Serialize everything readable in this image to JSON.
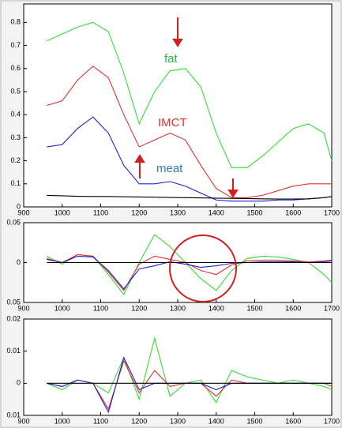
{
  "chart_data": [
    {
      "type": "line",
      "x": [
        960,
        1000,
        1040,
        1080,
        1120,
        1160,
        1200,
        1240,
        1280,
        1320,
        1360,
        1400,
        1440,
        1480,
        1520,
        1560,
        1600,
        1640,
        1680,
        1700
      ],
      "series": [
        {
          "name": "fat",
          "color": "#33dd33",
          "values": [
            0.72,
            0.75,
            0.78,
            0.8,
            0.76,
            0.58,
            0.36,
            0.5,
            0.59,
            0.6,
            0.52,
            0.32,
            0.17,
            0.17,
            0.22,
            0.28,
            0.34,
            0.36,
            0.32,
            0.2
          ]
        },
        {
          "name": "IMCT",
          "color": "#e03030",
          "values": [
            0.44,
            0.46,
            0.55,
            0.61,
            0.56,
            0.4,
            0.26,
            0.29,
            0.32,
            0.29,
            0.18,
            0.08,
            0.04,
            0.04,
            0.05,
            0.07,
            0.09,
            0.1,
            0.1,
            0.1
          ]
        },
        {
          "name": "meat",
          "color": "#2020d0",
          "values": [
            0.26,
            0.27,
            0.34,
            0.39,
            0.32,
            0.18,
            0.1,
            0.1,
            0.11,
            0.09,
            0.06,
            0.03,
            0.025,
            0.025,
            0.025,
            0.03,
            0.03,
            0.035,
            0.04,
            0.045
          ]
        },
        {
          "color": "#000000",
          "values": [
            0.05,
            0.048,
            0.046,
            0.045,
            0.045,
            0.044,
            0.043,
            0.042,
            0.041,
            0.04,
            0.039,
            0.038,
            0.037,
            0.036,
            0.035,
            0.034,
            0.034,
            0.035,
            0.04,
            0.045
          ]
        }
      ],
      "xlim": [
        900,
        1700
      ],
      "xticks": [
        900,
        1000,
        1100,
        1200,
        1300,
        1400,
        1500,
        1600,
        1700
      ],
      "ylim": [
        0,
        0.88
      ],
      "yticks": [
        0,
        0.1,
        0.2,
        0.3,
        0.4,
        0.5,
        0.6,
        0.7,
        0.8
      ]
    },
    {
      "type": "line",
      "x": [
        960,
        1000,
        1040,
        1080,
        1120,
        1160,
        1200,
        1240,
        1280,
        1320,
        1360,
        1400,
        1440,
        1480,
        1520,
        1560,
        1600,
        1640,
        1680,
        1700
      ],
      "series": [
        {
          "color": "#33dd33",
          "values": [
            0.008,
            -0.002,
            0.01,
            0.008,
            -0.015,
            -0.04,
            0.0,
            0.035,
            0.02,
            0.0,
            -0.02,
            -0.035,
            -0.01,
            0.005,
            0.008,
            0.007,
            0.004,
            0.0,
            -0.015,
            -0.025
          ]
        },
        {
          "color": "#e03030",
          "values": [
            0.005,
            0.0,
            0.01,
            0.008,
            -0.012,
            -0.035,
            -0.002,
            0.008,
            0.004,
            0.0,
            -0.01,
            -0.015,
            -0.003,
            0.002,
            0.003,
            0.003,
            0.002,
            0.001,
            0.002,
            0.003
          ]
        },
        {
          "color": "#2020d0",
          "values": [
            0.004,
            0.0,
            0.008,
            0.007,
            -0.01,
            -0.033,
            -0.008,
            -0.004,
            0.001,
            -0.002,
            -0.006,
            -0.004,
            -0.001,
            0.0,
            0.001,
            0.001,
            0.001,
            0.0,
            0.001,
            0.002
          ]
        },
        {
          "color": "#000000",
          "values": [
            0,
            0,
            0,
            0,
            0,
            0,
            0,
            0,
            0,
            0,
            0,
            0,
            0,
            0,
            0,
            0,
            0,
            0,
            0,
            0
          ]
        }
      ],
      "xlim": [
        900,
        1700
      ],
      "xticks": [
        900,
        1000,
        1100,
        1200,
        1300,
        1400,
        1500,
        1600,
        1700
      ],
      "ylim": [
        -0.05,
        0.05
      ],
      "yticks": [
        {
          "value": -0.05,
          "label": "0.05"
        },
        0,
        0.05
      ]
    },
    {
      "type": "line",
      "x": [
        960,
        1000,
        1040,
        1080,
        1120,
        1160,
        1200,
        1240,
        1280,
        1320,
        1360,
        1400,
        1440,
        1480,
        1520,
        1560,
        1600,
        1640,
        1680,
        1700
      ],
      "series": [
        {
          "color": "#33dd33",
          "values": [
            0.0,
            -0.002,
            0.001,
            0.0,
            -0.003,
            0.008,
            -0.005,
            0.014,
            -0.004,
            0.0,
            0.001,
            -0.006,
            0.004,
            0.002,
            0.001,
            0.0,
            0.001,
            0.0,
            -0.001,
            -0.002
          ]
        },
        {
          "color": "#e03030",
          "values": [
            0.0,
            -0.001,
            0.001,
            0.0,
            -0.008,
            0.007,
            -0.003,
            0.004,
            -0.001,
            0.0,
            0.0,
            -0.004,
            0.001,
            0.0,
            0.0,
            0.0,
            0.0,
            0.0,
            0.0,
            -0.001
          ]
        },
        {
          "color": "#2020d0",
          "values": [
            0.0,
            -0.001,
            0.001,
            0.0,
            -0.009,
            0.008,
            -0.002,
            0.0,
            0.0,
            0.0,
            0.0,
            -0.002,
            0.0,
            0.0,
            0.0,
            0.0,
            0.0,
            0.0,
            0.0,
            0.0
          ]
        },
        {
          "color": "#000000",
          "values": [
            0,
            0,
            0,
            0,
            0,
            0,
            0,
            0,
            0,
            0,
            0,
            0,
            0,
            0,
            0,
            0,
            0,
            0,
            0,
            0
          ]
        }
      ],
      "xlim": [
        900,
        1700
      ],
      "xticks": [
        900,
        1000,
        1100,
        1200,
        1300,
        1400,
        1500,
        1600,
        1700
      ],
      "ylim": [
        -0.01,
        0.02
      ],
      "yticks": [
        {
          "value": -0.01,
          "label": "0.01"
        },
        0,
        0.01,
        0.02
      ]
    }
  ]
}
